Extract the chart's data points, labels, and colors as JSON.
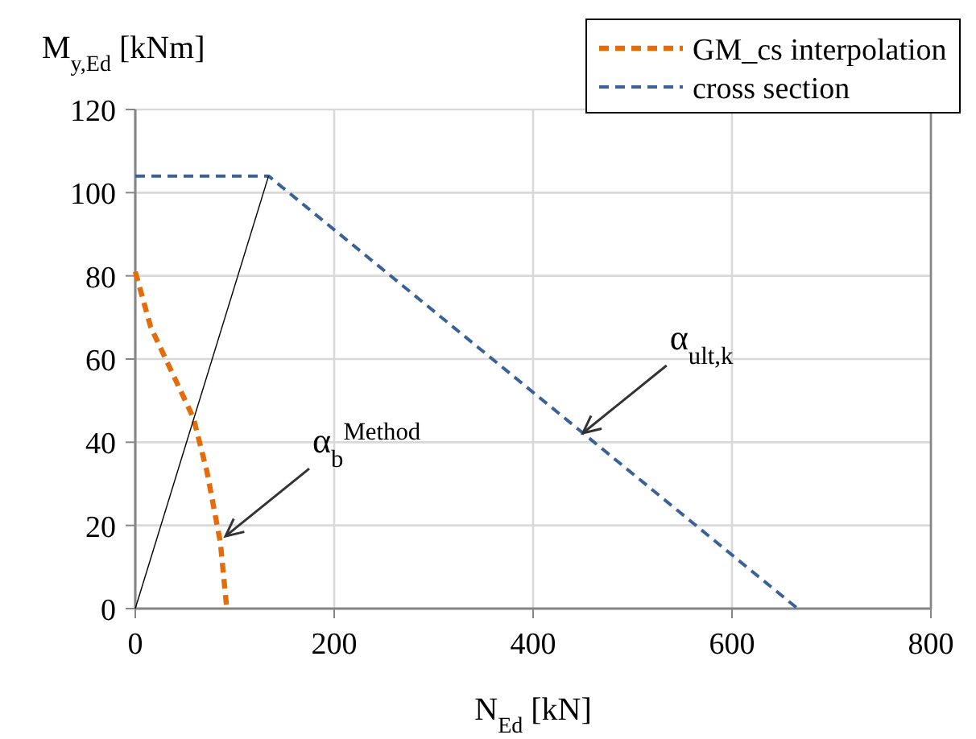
{
  "chart_data": {
    "type": "line",
    "xlabel": "N$_{Ed}$ [kN]",
    "ylabel": "M$_{y,Ed}$ [kNm]",
    "xlim": [
      0,
      800
    ],
    "xticks": [
      0,
      200,
      400,
      600,
      800
    ],
    "ylim": [
      0,
      120
    ],
    "yticks": [
      0,
      20,
      40,
      60,
      80,
      100,
      120
    ],
    "grid": true,
    "legend": "top right",
    "line_style": "dashed",
    "series": [
      {
        "name": "GM_cs interpolation",
        "color": "#e46c0a",
        "x": [
          0,
          15.5,
          58.5,
          72,
          85.5,
          92
        ],
        "values": [
          81,
          67.7,
          45.8,
          33,
          16,
          0
        ]
      },
      {
        "name": "cross section",
        "color": "#3a6298",
        "x": [
          0,
          134,
          666
        ],
        "values": [
          104,
          104,
          0
        ]
      },
      {
        "color": "#000000",
        "line_style": "solid",
        "x": [
          0,
          134
        ],
        "values": [
          0,
          104
        ]
      }
    ],
    "annotations": [
      {
        "text": "α$_{b}$$^{Method}$",
        "x": 90.7,
        "y": 17.4
      },
      {
        "text": "α$_{ult,k}$",
        "x": 450,
        "y": 42.2
      }
    ]
  }
}
